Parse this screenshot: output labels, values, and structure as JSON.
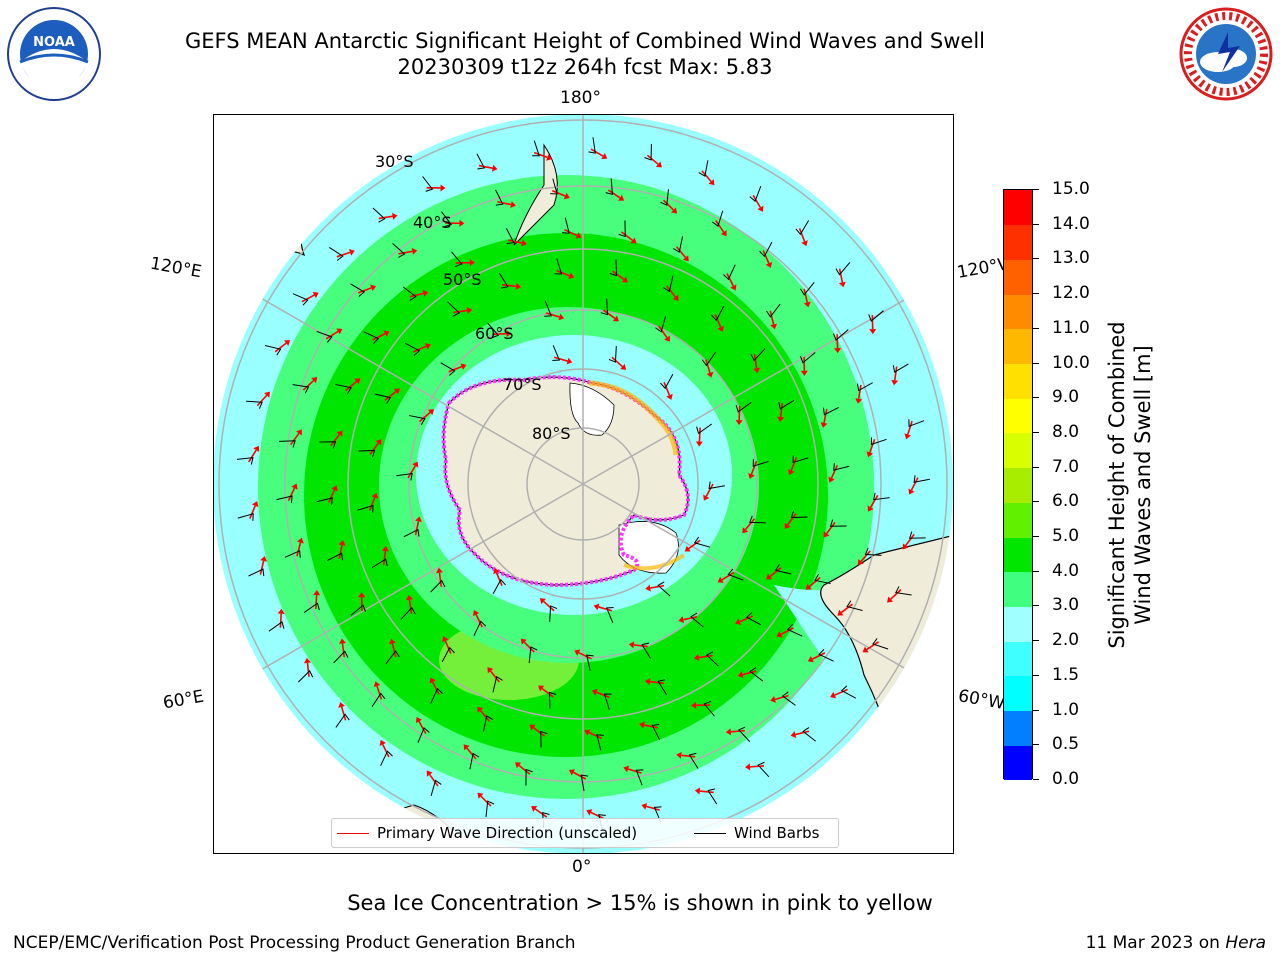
{
  "header": {
    "title_line1": "GEFS MEAN Antarctic Significant Height of Combined Wind Waves and Swell",
    "title_line2": "20230309 t12z 264h fcst   Max: 5.83"
  },
  "logos": {
    "left": "NOAA",
    "right": "NATIONAL WEATHER SERVICE"
  },
  "map": {
    "projection": "south-polar-stereographic",
    "longitude_labels": [
      "180°",
      "120°E",
      "120°W",
      "60°E",
      "60°W",
      "0°"
    ],
    "latitude_labels": [
      "30°S",
      "40°S",
      "50°S",
      "60°S",
      "70°S",
      "80°S"
    ],
    "legend": {
      "wave_label": "Primary Wave Direction (unscaled)",
      "barb_label": "Wind Barbs",
      "wave_color": "#ff0000",
      "barb_color": "#000000"
    },
    "land_color": "#efedd9",
    "ocean_base_color": "#99ffff"
  },
  "colorbar": {
    "label_line1": "Significant Height of Combined",
    "label_line2": "Wind Waves and Swell [m]",
    "ticks": [
      "0.0",
      "0.5",
      "1.0",
      "1.5",
      "2.0",
      "3.0",
      "4.0",
      "5.0",
      "6.0",
      "7.0",
      "8.0",
      "9.0",
      "10.0",
      "11.0",
      "12.0",
      "13.0",
      "14.0",
      "15.0"
    ],
    "colors": [
      "#0000ff",
      "#0080ff",
      "#00ffff",
      "#40ffff",
      "#a0ffff",
      "#40ff80",
      "#00e600",
      "#60f000",
      "#a8ec00",
      "#d8ff00",
      "#ffff00",
      "#ffe000",
      "#ffb800",
      "#ff8c00",
      "#ff6000",
      "#ff3000",
      "#ff0000"
    ]
  },
  "subtitle": "Sea Ice Concentration > 15% is shown in pink to yellow",
  "footer": {
    "left": "NCEP/EMC/Verification Post Processing Product Generation Branch",
    "right_date": "11 Mar 2023 on ",
    "right_host": "Hera"
  }
}
